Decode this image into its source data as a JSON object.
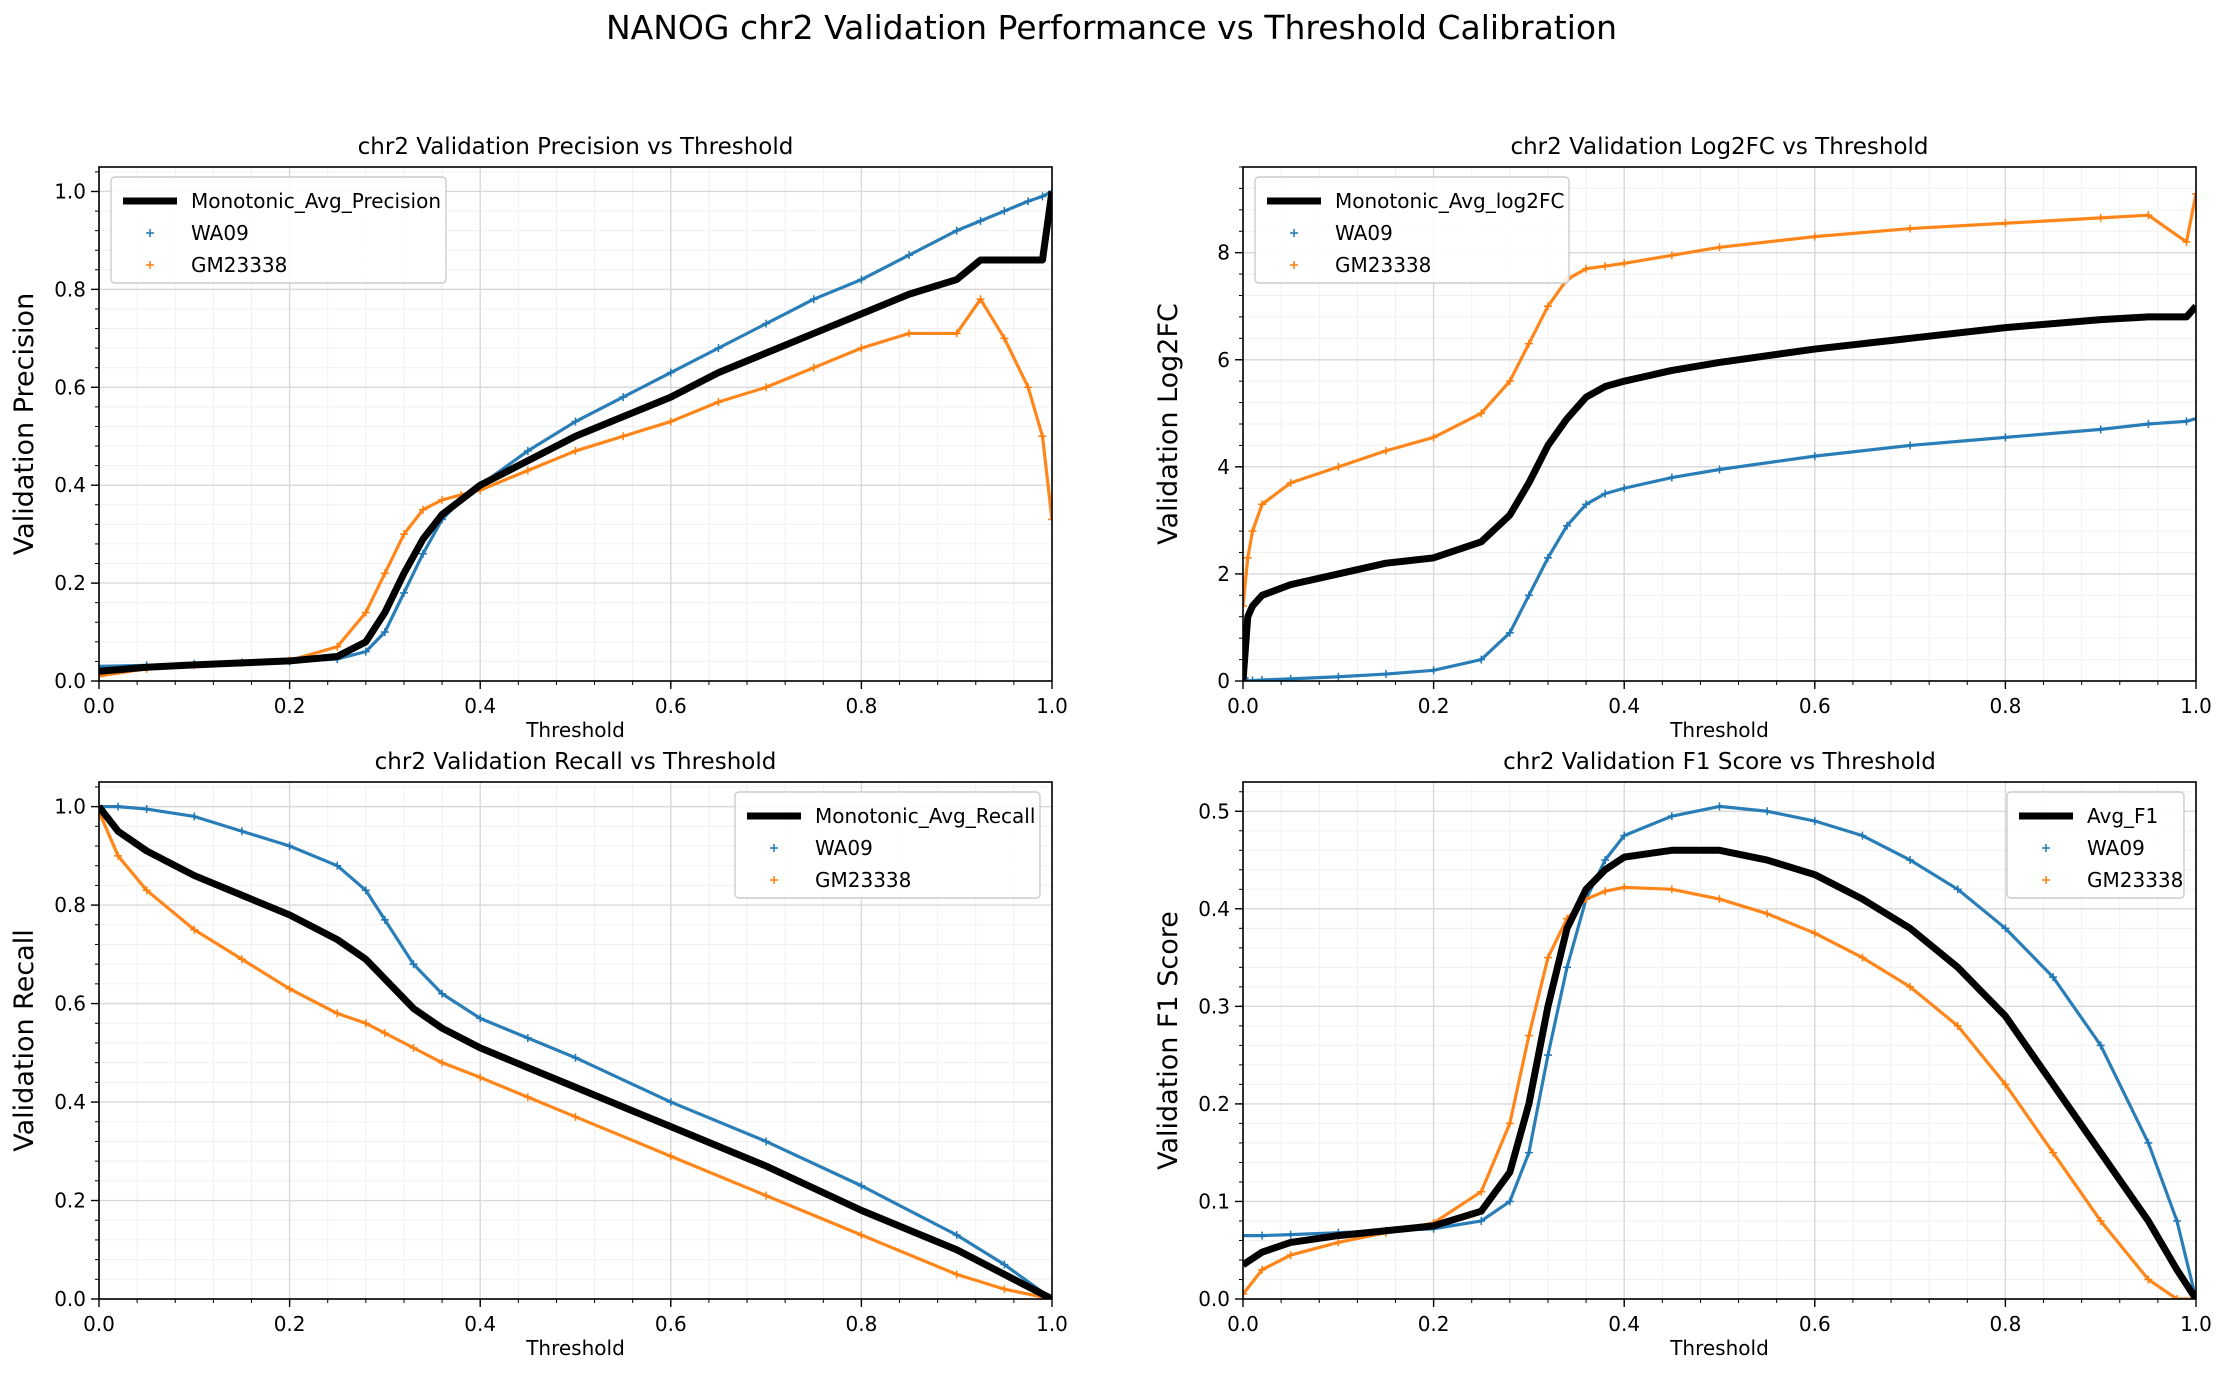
{
  "figure": {
    "title": "NANOG chr2 Validation Performance vs Threshold Calibration"
  },
  "colors": {
    "wa09": "#1f77b4",
    "gm23338": "#ff7f0e",
    "avg": "#000000",
    "grid": "#d9d9d9",
    "minor_grid": "#f0f0f0"
  },
  "chart_data": [
    {
      "type": "line",
      "title": "chr2 Validation Precision vs Threshold",
      "xlabel": "Threshold",
      "ylabel": "Validation Precision",
      "xlim": [
        0,
        1
      ],
      "ylim": [
        0,
        1.05
      ],
      "xticks": [
        "0.0",
        "0.2",
        "0.4",
        "0.6",
        "0.8",
        "1.0"
      ],
      "yticks": [
        "0.0",
        "0.2",
        "0.4",
        "0.6",
        "0.8",
        "1.0"
      ],
      "grid": true,
      "legend_position": "top-left",
      "x": [
        0,
        0.05,
        0.1,
        0.15,
        0.2,
        0.25,
        0.28,
        0.3,
        0.32,
        0.34,
        0.36,
        0.38,
        0.4,
        0.45,
        0.5,
        0.55,
        0.6,
        0.65,
        0.7,
        0.75,
        0.8,
        0.85,
        0.9,
        0.925,
        0.95,
        0.975,
        0.99,
        1.0
      ],
      "series": [
        {
          "name": "Monotonic_Avg_Precision",
          "style": "line",
          "values": [
            0.02,
            0.028,
            0.033,
            0.037,
            0.041,
            0.05,
            0.08,
            0.14,
            0.22,
            0.29,
            0.34,
            0.37,
            0.4,
            0.45,
            0.5,
            0.54,
            0.58,
            0.63,
            0.67,
            0.71,
            0.75,
            0.79,
            0.82,
            0.86,
            0.86,
            0.86,
            0.86,
            1.0
          ]
        },
        {
          "name": "WA09",
          "style": "marker",
          "values": [
            0.03,
            0.032,
            0.035,
            0.038,
            0.04,
            0.045,
            0.06,
            0.1,
            0.18,
            0.26,
            0.33,
            0.37,
            0.4,
            0.47,
            0.53,
            0.58,
            0.63,
            0.68,
            0.73,
            0.78,
            0.82,
            0.87,
            0.92,
            0.94,
            0.96,
            0.98,
            0.99,
            1.0
          ]
        },
        {
          "name": "GM23338",
          "style": "marker",
          "values": [
            0.01,
            0.025,
            0.032,
            0.037,
            0.042,
            0.07,
            0.14,
            0.22,
            0.3,
            0.35,
            0.37,
            0.38,
            0.39,
            0.43,
            0.47,
            0.5,
            0.53,
            0.57,
            0.6,
            0.64,
            0.68,
            0.71,
            0.71,
            0.78,
            0.7,
            0.6,
            0.5,
            0.33
          ]
        }
      ]
    },
    {
      "type": "line",
      "title": "chr2 Validation Log2FC vs Threshold",
      "xlabel": "Threshold",
      "ylabel": "Validation Log2FC",
      "xlim": [
        0,
        1
      ],
      "ylim": [
        0,
        9.6
      ],
      "xticks": [
        "0.0",
        "0.2",
        "0.4",
        "0.6",
        "0.8",
        "1.0"
      ],
      "yticks": [
        "0",
        "2",
        "4",
        "6",
        "8"
      ],
      "grid": true,
      "legend_position": "top-left",
      "x": [
        0,
        0.005,
        0.01,
        0.02,
        0.05,
        0.1,
        0.15,
        0.2,
        0.25,
        0.28,
        0.3,
        0.32,
        0.34,
        0.36,
        0.38,
        0.4,
        0.45,
        0.5,
        0.6,
        0.7,
        0.8,
        0.9,
        0.95,
        0.99,
        1.0
      ],
      "series": [
        {
          "name": "Monotonic_Avg_log2FC",
          "style": "line",
          "values": [
            0.0,
            1.2,
            1.4,
            1.6,
            1.8,
            2.0,
            2.2,
            2.3,
            2.6,
            3.1,
            3.7,
            4.4,
            4.9,
            5.3,
            5.5,
            5.6,
            5.8,
            5.95,
            6.2,
            6.4,
            6.6,
            6.75,
            6.8,
            6.8,
            7.0
          ]
        },
        {
          "name": "WA09",
          "style": "marker",
          "values": [
            0.0,
            0.0,
            0.01,
            0.02,
            0.04,
            0.08,
            0.13,
            0.2,
            0.4,
            0.9,
            1.6,
            2.3,
            2.9,
            3.3,
            3.5,
            3.6,
            3.8,
            3.95,
            4.2,
            4.4,
            4.55,
            4.7,
            4.8,
            4.85,
            4.9
          ]
        },
        {
          "name": "GM23338",
          "style": "marker",
          "values": [
            1.4,
            2.3,
            2.8,
            3.3,
            3.7,
            4.0,
            4.3,
            4.55,
            5.0,
            5.6,
            6.3,
            7.0,
            7.5,
            7.7,
            7.75,
            7.8,
            7.95,
            8.1,
            8.3,
            8.45,
            8.55,
            8.65,
            8.7,
            8.2,
            9.1
          ]
        }
      ]
    },
    {
      "type": "line",
      "title": "chr2 Validation Recall vs Threshold",
      "xlabel": "Threshold",
      "ylabel": "Validation Recall",
      "xlim": [
        0,
        1
      ],
      "ylim": [
        0,
        1.05
      ],
      "xticks": [
        "0.0",
        "0.2",
        "0.4",
        "0.6",
        "0.8",
        "1.0"
      ],
      "yticks": [
        "0.0",
        "0.2",
        "0.4",
        "0.6",
        "0.8",
        "1.0"
      ],
      "grid": true,
      "legend_position": "top-right",
      "x": [
        0,
        0.02,
        0.05,
        0.1,
        0.15,
        0.2,
        0.25,
        0.28,
        0.3,
        0.33,
        0.36,
        0.4,
        0.45,
        0.5,
        0.6,
        0.7,
        0.8,
        0.9,
        0.95,
        1.0
      ],
      "series": [
        {
          "name": "Monotonic_Avg_Recall",
          "style": "line",
          "values": [
            1.0,
            0.95,
            0.91,
            0.86,
            0.82,
            0.78,
            0.73,
            0.69,
            0.65,
            0.59,
            0.55,
            0.51,
            0.47,
            0.43,
            0.35,
            0.27,
            0.18,
            0.1,
            0.05,
            0.0
          ]
        },
        {
          "name": "WA09",
          "style": "marker",
          "values": [
            1.0,
            1.0,
            0.995,
            0.98,
            0.95,
            0.92,
            0.88,
            0.83,
            0.77,
            0.68,
            0.62,
            0.57,
            0.53,
            0.49,
            0.4,
            0.32,
            0.23,
            0.13,
            0.07,
            0.0
          ]
        },
        {
          "name": "GM23338",
          "style": "marker",
          "values": [
            0.99,
            0.9,
            0.83,
            0.75,
            0.69,
            0.63,
            0.58,
            0.56,
            0.54,
            0.51,
            0.48,
            0.45,
            0.41,
            0.37,
            0.29,
            0.21,
            0.13,
            0.05,
            0.02,
            0.0
          ]
        }
      ]
    },
    {
      "type": "line",
      "title": "chr2 Validation F1 Score vs Threshold",
      "xlabel": "Threshold",
      "ylabel": "Validation F1 Score",
      "xlim": [
        0,
        1
      ],
      "ylim": [
        0,
        0.53
      ],
      "xticks": [
        "0.0",
        "0.2",
        "0.4",
        "0.6",
        "0.8",
        "1.0"
      ],
      "yticks": [
        "0.0",
        "0.1",
        "0.2",
        "0.3",
        "0.4",
        "0.5"
      ],
      "grid": true,
      "legend_position": "top-right",
      "x": [
        0,
        0.02,
        0.05,
        0.1,
        0.15,
        0.2,
        0.25,
        0.28,
        0.3,
        0.32,
        0.34,
        0.36,
        0.38,
        0.4,
        0.45,
        0.5,
        0.55,
        0.6,
        0.65,
        0.7,
        0.75,
        0.8,
        0.85,
        0.9,
        0.95,
        0.98,
        1.0
      ],
      "series": [
        {
          "name": "Avg_F1",
          "style": "line",
          "values": [
            0.035,
            0.048,
            0.058,
            0.065,
            0.07,
            0.075,
            0.09,
            0.13,
            0.2,
            0.3,
            0.38,
            0.42,
            0.44,
            0.453,
            0.46,
            0.46,
            0.45,
            0.435,
            0.41,
            0.38,
            0.34,
            0.29,
            0.22,
            0.15,
            0.08,
            0.03,
            0.0
          ]
        },
        {
          "name": "WA09",
          "style": "marker",
          "values": [
            0.065,
            0.065,
            0.066,
            0.068,
            0.07,
            0.072,
            0.08,
            0.1,
            0.15,
            0.25,
            0.34,
            0.41,
            0.45,
            0.475,
            0.495,
            0.505,
            0.5,
            0.49,
            0.475,
            0.45,
            0.42,
            0.38,
            0.33,
            0.26,
            0.16,
            0.08,
            0.0
          ]
        },
        {
          "name": "GM23338",
          "style": "marker",
          "values": [
            0.005,
            0.03,
            0.045,
            0.058,
            0.068,
            0.078,
            0.11,
            0.18,
            0.27,
            0.35,
            0.39,
            0.41,
            0.418,
            0.422,
            0.42,
            0.41,
            0.395,
            0.375,
            0.35,
            0.32,
            0.28,
            0.22,
            0.15,
            0.08,
            0.02,
            0.0,
            0.0
          ]
        }
      ]
    }
  ]
}
